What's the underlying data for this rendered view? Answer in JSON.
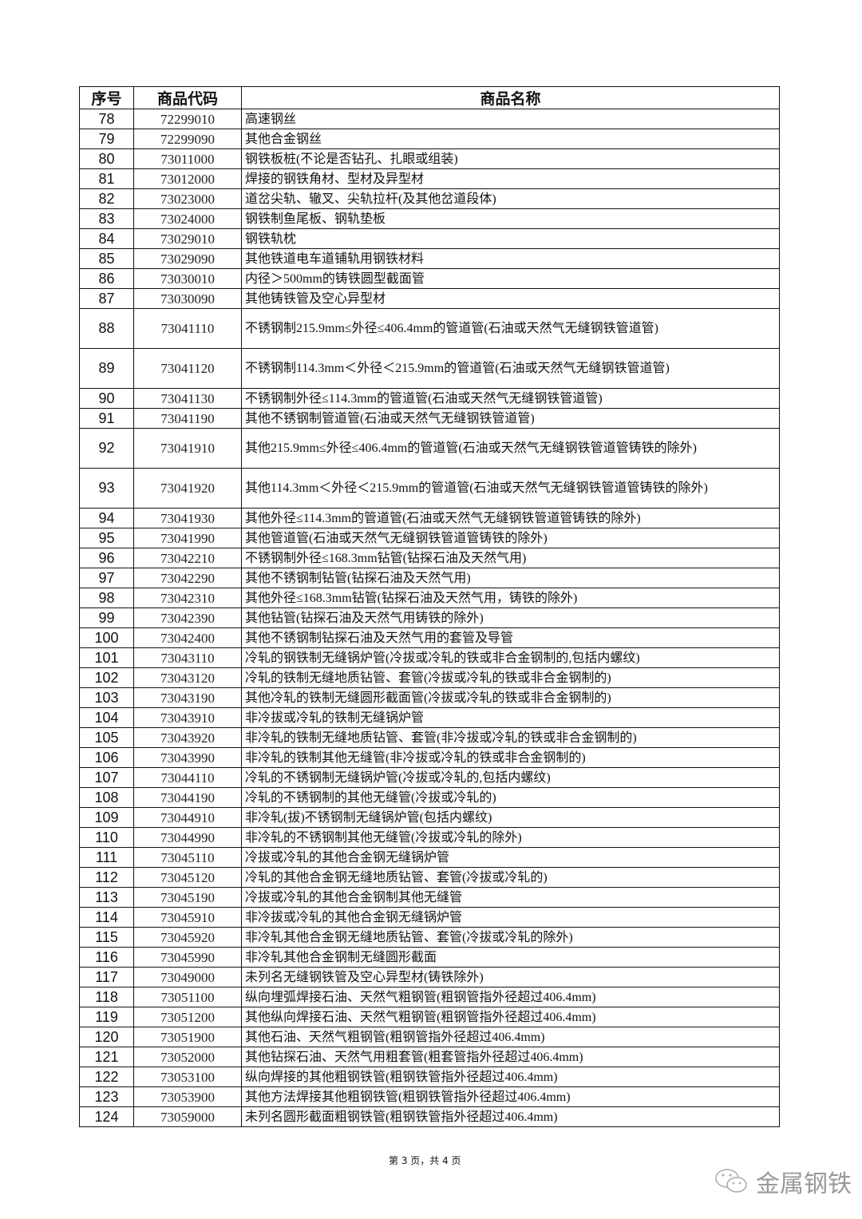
{
  "table": {
    "headers": [
      "序号",
      "商品代码",
      "商品名称"
    ],
    "rows": [
      [
        "78",
        "72299010",
        "高速钢丝"
      ],
      [
        "79",
        "72299090",
        "其他合金钢丝"
      ],
      [
        "80",
        "73011000",
        "钢铁板桩(不论是否钻孔、扎眼或组装)"
      ],
      [
        "81",
        "73012000",
        "焊接的钢铁角材、型材及异型材"
      ],
      [
        "82",
        "73023000",
        "道岔尖轨、辙叉、尖轨拉杆(及其他岔道段体)"
      ],
      [
        "83",
        "73024000",
        "钢铁制鱼尾板、钢轨垫板"
      ],
      [
        "84",
        "73029010",
        "钢铁轨枕"
      ],
      [
        "85",
        "73029090",
        "其他铁道电车道铺轨用钢铁材料"
      ],
      [
        "86",
        "73030010",
        "内径＞500mm的铸铁圆型截面管"
      ],
      [
        "87",
        "73030090",
        "其他铸铁管及空心异型材"
      ],
      [
        "88",
        "73041110",
        "不锈钢制215.9mm≤外径≤406.4mm的管道管(石油或天然气无缝钢铁管道管)"
      ],
      [
        "89",
        "73041120",
        "不锈钢制114.3mm＜外径＜215.9mm的管道管(石油或天然气无缝钢铁管道管)"
      ],
      [
        "90",
        "73041130",
        "不锈钢制外径≤114.3mm的管道管(石油或天然气无缝钢铁管道管)"
      ],
      [
        "91",
        "73041190",
        "其他不锈钢制管道管(石油或天然气无缝钢铁管道管)"
      ],
      [
        "92",
        "73041910",
        "其他215.9mm≤外径≤406.4mm的管道管(石油或天然气无缝钢铁管道管铸铁的除外)"
      ],
      [
        "93",
        "73041920",
        "其他114.3mm＜外径＜215.9mm的管道管(石油或天然气无缝钢铁管道管铸铁的除外)"
      ],
      [
        "94",
        "73041930",
        "其他外径≤114.3mm的管道管(石油或天然气无缝钢铁管道管铸铁的除外)"
      ],
      [
        "95",
        "73041990",
        "其他管道管(石油或天然气无缝钢铁管道管铸铁的除外)"
      ],
      [
        "96",
        "73042210",
        "不锈钢制外径≤168.3mm钻管(钻探石油及天然气用)"
      ],
      [
        "97",
        "73042290",
        "其他不锈钢制钻管(钻探石油及天然气用)"
      ],
      [
        "98",
        "73042310",
        "其他外径≤168.3mm钻管(钻探石油及天然气用，铸铁的除外)"
      ],
      [
        "99",
        "73042390",
        "其他钻管(钻探石油及天然气用铸铁的除外)"
      ],
      [
        "100",
        "73042400",
        "其他不锈钢制钻探石油及天然气用的套管及导管"
      ],
      [
        "101",
        "73043110",
        "冷轧的钢铁制无缝锅炉管(冷拔或冷轧的铁或非合金钢制的,包括内螺纹)"
      ],
      [
        "102",
        "73043120",
        "冷轧的铁制无缝地质钻管、套管(冷拔或冷轧的铁或非合金钢制的)"
      ],
      [
        "103",
        "73043190",
        "其他冷轧的铁制无缝圆形截面管(冷拔或冷轧的铁或非合金钢制的)"
      ],
      [
        "104",
        "73043910",
        "非冷拔或冷轧的铁制无缝锅炉管"
      ],
      [
        "105",
        "73043920",
        "非冷轧的铁制无缝地质钻管、套管(非冷拔或冷轧的铁或非合金钢制的)"
      ],
      [
        "106",
        "73043990",
        "非冷轧的铁制其他无缝管(非冷拔或冷轧的铁或非合金钢制的)"
      ],
      [
        "107",
        "73044110",
        "冷轧的不锈钢制无缝锅炉管(冷拔或冷轧的,包括内螺纹)"
      ],
      [
        "108",
        "73044190",
        "冷轧的不锈钢制的其他无缝管(冷拔或冷轧的)"
      ],
      [
        "109",
        "73044910",
        "非冷轧(拔)不锈钢制无缝锅炉管(包括内螺纹)"
      ],
      [
        "110",
        "73044990",
        "非冷轧的不锈钢制其他无缝管(冷拔或冷轧的除外)"
      ],
      [
        "111",
        "73045110",
        "冷拔或冷轧的其他合金钢无缝锅炉管"
      ],
      [
        "112",
        "73045120",
        "冷轧的其他合金钢无缝地质钻管、套管(冷拔或冷轧的)"
      ],
      [
        "113",
        "73045190",
        "冷拔或冷轧的其他合金钢制其他无缝管"
      ],
      [
        "114",
        "73045910",
        "非冷拔或冷轧的其他合金钢无缝锅炉管"
      ],
      [
        "115",
        "73045920",
        "非冷轧其他合金钢无缝地质钻管、套管(冷拔或冷轧的除外)"
      ],
      [
        "116",
        "73045990",
        "非冷轧其他合金钢制无缝圆形截面"
      ],
      [
        "117",
        "73049000",
        "未列名无缝钢铁管及空心异型材(铸铁除外)"
      ],
      [
        "118",
        "73051100",
        "纵向埋弧焊接石油、天然气粗钢管(粗钢管指外径超过406.4mm)"
      ],
      [
        "119",
        "73051200",
        "其他纵向焊接石油、天然气粗钢管(粗钢管指外径超过406.4mm)"
      ],
      [
        "120",
        "73051900",
        "其他石油、天然气粗钢管(粗钢管指外径超过406.4mm)"
      ],
      [
        "121",
        "73052000",
        "其他钻探石油、天然气用粗套管(粗套管指外径超过406.4mm)"
      ],
      [
        "122",
        "73053100",
        "纵向焊接的其他粗钢铁管(粗钢铁管指外径超过406.4mm)"
      ],
      [
        "123",
        "73053900",
        "其他方法焊接其他粗钢铁管(粗钢铁管指外径超过406.4mm)"
      ],
      [
        "124",
        "73059000",
        "未列名圆形截面粗钢铁管(粗钢铁管指外径超过406.4mm)"
      ]
    ],
    "tall_rows": [
      "88",
      "89",
      "92",
      "93"
    ]
  },
  "footer": {
    "page_label": "第 3 页，共 4 页"
  },
  "watermark": {
    "text": "金属钢铁",
    "icon": "wechat-icon"
  }
}
